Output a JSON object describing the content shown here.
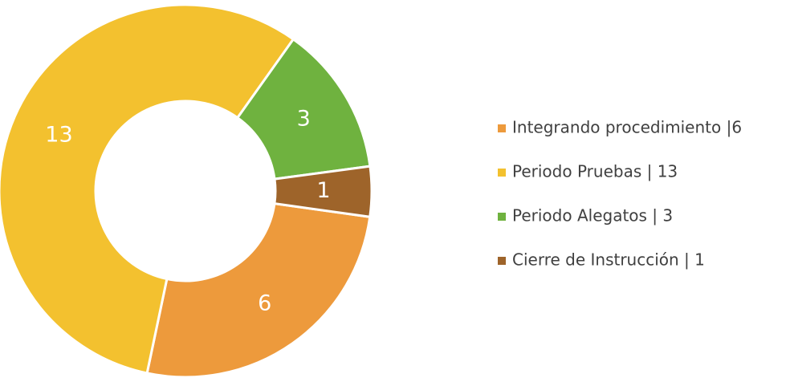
{
  "chart_data": {
    "type": "donut",
    "categories": [
      "Integrando procedimiento |6",
      "Periodo Pruebas | 13",
      "Periodo Alegatos | 3",
      "Cierre de Instrucción | 1"
    ],
    "values": [
      6,
      13,
      3,
      1
    ],
    "colors": [
      "#ed9a3c",
      "#f3c12f",
      "#6fb23f",
      "#9e642a"
    ],
    "legend": "right"
  }
}
